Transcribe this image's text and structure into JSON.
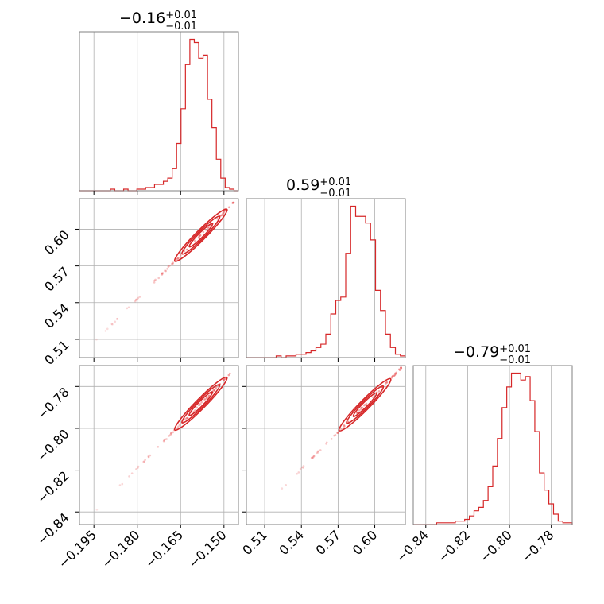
{
  "chart_data": {
    "type": "scatter",
    "kind": "corner",
    "color": "#d62728",
    "parameters": [
      {
        "index": 0,
        "title_median": "−0.16",
        "title_plus": "+0.01",
        "title_minus": "−0.01",
        "range": [
          -0.2,
          -0.145
        ],
        "ticks": [
          -0.195,
          -0.18,
          -0.165,
          -0.15
        ],
        "tick_labels": [
          "−0.195",
          "−0.180",
          "−0.165",
          "−0.150"
        ]
      },
      {
        "index": 1,
        "title_median": "0.59",
        "title_plus": "+0.01",
        "title_minus": "−0.01",
        "range": [
          0.495,
          0.625
        ],
        "ticks": [
          0.51,
          0.54,
          0.57,
          0.6
        ],
        "tick_labels": [
          "0.51",
          "0.54",
          "0.57",
          "0.60"
        ]
      },
      {
        "index": 2,
        "title_median": "−0.79",
        "title_plus": "+0.01",
        "title_minus": "−0.01",
        "range": [
          -0.846,
          -0.77
        ],
        "ticks": [
          -0.84,
          -0.82,
          -0.8,
          -0.78
        ],
        "tick_labels": [
          "−0.84",
          "−0.82",
          "−0.80",
          "−0.78"
        ]
      }
    ],
    "histograms": [
      {
        "param": 0,
        "counts": [
          0,
          0,
          0,
          0,
          0,
          0,
          0,
          1,
          0,
          0,
          1,
          0,
          0,
          1,
          1,
          2,
          2,
          4,
          4,
          6,
          8,
          14,
          30,
          52,
          80,
          96,
          94,
          84,
          86,
          58,
          40,
          20,
          8,
          2,
          1,
          0
        ]
      },
      {
        "param": 1,
        "counts": [
          0,
          0,
          0,
          0,
          0,
          0,
          1,
          0,
          1,
          1,
          2,
          2,
          3,
          4,
          6,
          8,
          14,
          26,
          34,
          36,
          62,
          90,
          84,
          84,
          80,
          70,
          40,
          28,
          14,
          6,
          2,
          1
        ]
      },
      {
        "param": 2,
        "counts": [
          0,
          0,
          0,
          0,
          0,
          1,
          1,
          1,
          1,
          2,
          2,
          3,
          5,
          8,
          10,
          14,
          22,
          34,
          50,
          68,
          80,
          88,
          88,
          84,
          86,
          72,
          54,
          30,
          20,
          12,
          6,
          2,
          1,
          1
        ]
      }
    ],
    "pairs": [
      {
        "x": 0,
        "y": 1,
        "slope": 2.36,
        "intercept": 0.968,
        "center_x": -0.158,
        "contours": [
          0.004,
          0.0065,
          0.009
        ]
      },
      {
        "x": 0,
        "y": 2,
        "slope": 1.4,
        "intercept": -0.567,
        "center_x": -0.158,
        "contours": [
          0.004,
          0.0065,
          0.009
        ]
      },
      {
        "x": 1,
        "y": 2,
        "slope": 0.59,
        "intercept": -1.138,
        "center_x": 0.592,
        "contours": [
          0.0095,
          0.015,
          0.021
        ]
      }
    ],
    "grid": true
  }
}
